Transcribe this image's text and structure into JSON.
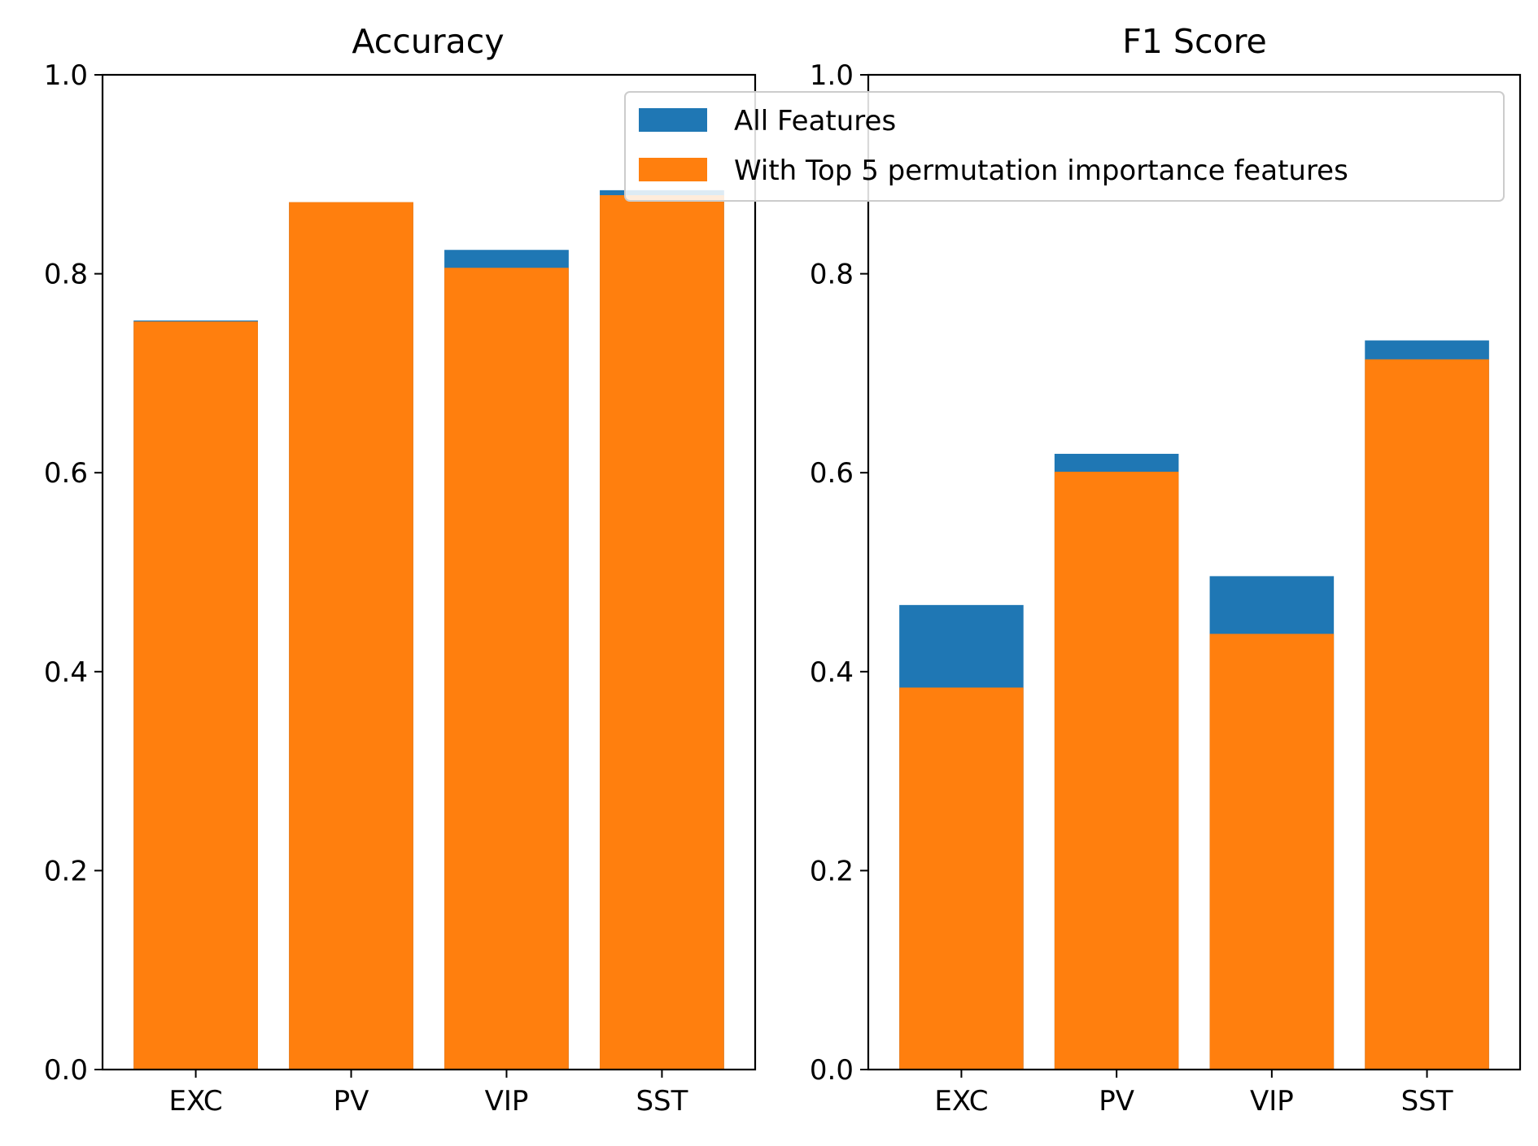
{
  "chart_data": [
    {
      "type": "bar",
      "title": "Accuracy",
      "categories": [
        "EXC",
        "PV",
        "VIP",
        "SST"
      ],
      "series": [
        {
          "name": "All Features",
          "values": [
            0.753,
            0.872,
            0.824,
            0.884
          ]
        },
        {
          "name": "With Top 5 permutation importance features",
          "values": [
            0.752,
            0.872,
            0.806,
            0.879
          ]
        }
      ],
      "ylim": [
        0,
        1.0
      ],
      "yticks": [
        "0.0",
        "0.2",
        "0.4",
        "0.6",
        "0.8",
        "1.0"
      ],
      "legend": "none"
    },
    {
      "type": "bar",
      "title": "F1 Score",
      "categories": [
        "EXC",
        "PV",
        "VIP",
        "SST"
      ],
      "series": [
        {
          "name": "All Features",
          "values": [
            0.467,
            0.619,
            0.496,
            0.733
          ]
        },
        {
          "name": "With Top 5 permutation importance features",
          "values": [
            0.384,
            0.601,
            0.438,
            0.714
          ]
        }
      ],
      "ylim": [
        0,
        1.0
      ],
      "yticks": [
        "0.0",
        "0.2",
        "0.4",
        "0.6",
        "0.8",
        "1.0"
      ],
      "legend": "top-right"
    }
  ],
  "legend": {
    "items": [
      {
        "label": "All Features",
        "color": "#1f77b4"
      },
      {
        "label": "With Top 5 permutation importance features",
        "color": "#ff7f0e"
      }
    ]
  },
  "colors": {
    "all_features": "#1f77b4",
    "top5": "#ff7f0e"
  }
}
